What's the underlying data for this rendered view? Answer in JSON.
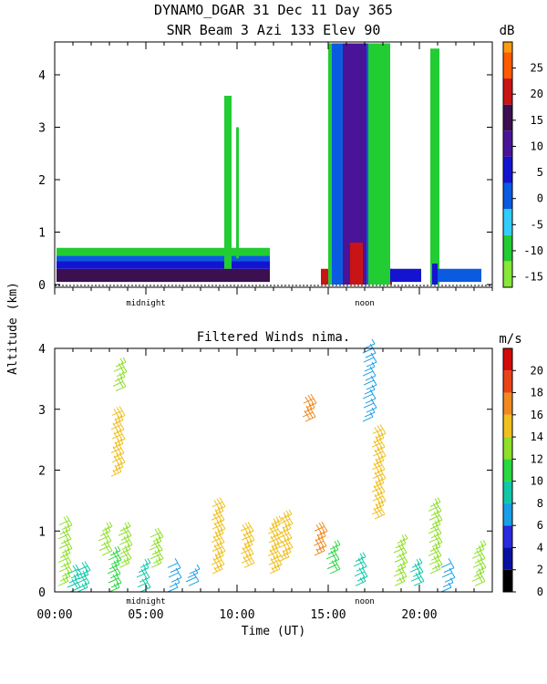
{
  "header": {
    "line1": "DYNAMO_DGAR  31 Dec 11 Day 365",
    "line2": "SNR Beam 3 Azi 133 Elev 90"
  },
  "ylabel": "Altitude (km)",
  "xlabel": "Time (UT)",
  "markers": {
    "midnight": "midnight",
    "noon": "noon"
  },
  "chart_data": [
    {
      "type": "heatmap",
      "title": "SNR Beam 3 Azi 133 Elev 90",
      "xlim": [
        0,
        24
      ],
      "ylim": [
        0,
        4.6
      ],
      "y_ticks": [
        "0",
        "1",
        "2",
        "3",
        "4"
      ],
      "colorbar": {
        "unit": "dB",
        "ticks": [
          "-15",
          "-10",
          "-5",
          "0",
          "5",
          "10",
          "15",
          "20",
          "25"
        ],
        "range": [
          -17,
          30
        ]
      },
      "regions": [
        {
          "x0": 0.1,
          "x1": 11.8,
          "y0": 0.05,
          "y1": 0.3,
          "snr": 15
        },
        {
          "x0": 0.1,
          "x1": 11.8,
          "y0": 0.3,
          "y1": 0.45,
          "snr": 6
        },
        {
          "x0": 0.1,
          "x1": 11.8,
          "y0": 0.45,
          "y1": 0.55,
          "snr": -2
        },
        {
          "x0": 0.1,
          "x1": 11.8,
          "y0": 0.55,
          "y1": 0.7,
          "snr": -12
        },
        {
          "x0": 9.3,
          "x1": 9.7,
          "y0": 0.3,
          "y1": 3.6,
          "snr": -12
        },
        {
          "x0": 9.95,
          "x1": 10.1,
          "y0": 0.5,
          "y1": 3.0,
          "snr": -12
        },
        {
          "x0": 14.6,
          "x1": 18.5,
          "y0": 0.0,
          "y1": 0.3,
          "snr": 20
        },
        {
          "x0": 15.0,
          "x1": 18.4,
          "y0": 0.0,
          "y1": 4.6,
          "snr": -12
        },
        {
          "x0": 15.2,
          "x1": 17.2,
          "y0": 0.0,
          "y1": 4.6,
          "snr": 0
        },
        {
          "x0": 15.8,
          "x1": 17.1,
          "y0": 0.0,
          "y1": 4.6,
          "snr": 8
        },
        {
          "x0": 16.1,
          "x1": 16.8,
          "y0": 0.3,
          "y1": 1.5,
          "snr": 12
        },
        {
          "x0": 16.2,
          "x1": 16.9,
          "y0": 0.0,
          "y1": 0.8,
          "snr": 22
        },
        {
          "x0": 18.4,
          "x1": 20.1,
          "y0": 0.05,
          "y1": 0.3,
          "snr": 5
        },
        {
          "x0": 20.6,
          "x1": 21.1,
          "y0": 0.0,
          "y1": 4.5,
          "snr": -12
        },
        {
          "x0": 20.7,
          "x1": 21.0,
          "y0": 0.0,
          "y1": 0.4,
          "snr": 5
        },
        {
          "x0": 21.0,
          "x1": 23.4,
          "y0": 0.05,
          "y1": 0.3,
          "snr": 2
        }
      ]
    },
    {
      "type": "scatter",
      "title": "Filtered Winds nima.",
      "xlim": [
        0,
        24
      ],
      "ylim": [
        0,
        4
      ],
      "x_ticks": [
        "00:00",
        "05:00",
        "10:00",
        "15:00",
        "20:00"
      ],
      "y_ticks": [
        "0",
        "1",
        "2",
        "3",
        "4"
      ],
      "colorbar": {
        "unit": "m/s",
        "ticks": [
          "0",
          "2",
          "4",
          "6",
          "8",
          "10",
          "12",
          "14",
          "16",
          "18",
          "20"
        ],
        "range": [
          0,
          22
        ]
      },
      "clusters": [
        {
          "x": 0.3,
          "y0": 0.1,
          "y1": 1.1,
          "speed": 13
        },
        {
          "x": 0.8,
          "y0": 0.0,
          "y1": 0.3,
          "speed": 8
        },
        {
          "x": 1.3,
          "y0": 0.0,
          "y1": 0.35,
          "speed": 9
        },
        {
          "x": 2.5,
          "y0": 0.6,
          "y1": 1.0,
          "speed": 13
        },
        {
          "x": 3.0,
          "y0": 0.0,
          "y1": 0.6,
          "speed": 10
        },
        {
          "x": 3.2,
          "y0": 1.9,
          "y1": 2.9,
          "speed": 15
        },
        {
          "x": 3.3,
          "y0": 3.3,
          "y1": 3.7,
          "speed": 13
        },
        {
          "x": 3.6,
          "y0": 0.4,
          "y1": 1.0,
          "speed": 13
        },
        {
          "x": 4.6,
          "y0": 0.0,
          "y1": 0.4,
          "speed": 9
        },
        {
          "x": 5.3,
          "y0": 0.4,
          "y1": 0.9,
          "speed": 13
        },
        {
          "x": 6.3,
          "y0": 0.0,
          "y1": 0.4,
          "speed": 7
        },
        {
          "x": 7.3,
          "y0": 0.1,
          "y1": 0.3,
          "speed": 6
        },
        {
          "x": 8.7,
          "y0": 0.3,
          "y1": 1.4,
          "speed": 14
        },
        {
          "x": 10.3,
          "y0": 0.4,
          "y1": 1.0,
          "speed": 14
        },
        {
          "x": 11.8,
          "y0": 0.3,
          "y1": 1.1,
          "speed": 14
        },
        {
          "x": 12.4,
          "y0": 0.5,
          "y1": 1.2,
          "speed": 15
        },
        {
          "x": 13.7,
          "y0": 2.8,
          "y1": 3.1,
          "speed": 17
        },
        {
          "x": 14.3,
          "y0": 0.6,
          "y1": 1.0,
          "speed": 16
        },
        {
          "x": 15.0,
          "y0": 0.3,
          "y1": 0.7,
          "speed": 11
        },
        {
          "x": 16.5,
          "y0": 0.1,
          "y1": 0.5,
          "speed": 8
        },
        {
          "x": 17.0,
          "y0": 2.8,
          "y1": 4.0,
          "speed": 6
        },
        {
          "x": 17.5,
          "y0": 1.2,
          "y1": 2.6,
          "speed": 15
        },
        {
          "x": 18.7,
          "y0": 0.1,
          "y1": 0.8,
          "speed": 12
        },
        {
          "x": 19.6,
          "y0": 0.1,
          "y1": 0.4,
          "speed": 8
        },
        {
          "x": 20.6,
          "y0": 0.3,
          "y1": 1.4,
          "speed": 12
        },
        {
          "x": 21.3,
          "y0": 0.0,
          "y1": 0.4,
          "speed": 6
        },
        {
          "x": 23.0,
          "y0": 0.1,
          "y1": 0.7,
          "speed": 12
        }
      ]
    }
  ]
}
